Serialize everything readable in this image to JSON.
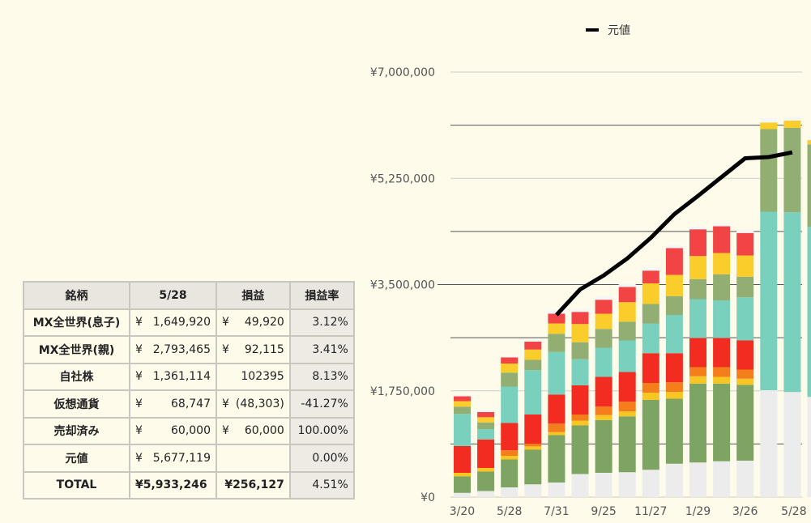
{
  "table": {
    "headers": [
      "銘柄",
      "5/28",
      "損益",
      "損益率"
    ],
    "rows": [
      {
        "name": "MX全世界(息子)",
        "yen": "¥",
        "amount": "1,649,920",
        "pl_yen": "¥",
        "pl": "49,920",
        "rate": "3.12%"
      },
      {
        "name": "MX全世界(親)",
        "yen": "¥",
        "amount": "2,793,465",
        "pl_yen": "¥",
        "pl": "92,115",
        "rate": "3.41%"
      },
      {
        "name": "自社株",
        "yen": "¥",
        "amount": "1,361,114",
        "pl_yen": "",
        "pl": "102395",
        "rate": "8.13%"
      },
      {
        "name": "仮想通貨",
        "yen": "¥",
        "amount": "68,747",
        "pl_yen": "¥",
        "pl": "(48,303)",
        "rate": "-41.27%"
      },
      {
        "name": "売却済み",
        "yen": "¥",
        "amount": "60,000",
        "pl_yen": "¥",
        "pl": "60,000",
        "rate": "100.00%"
      },
      {
        "name": "元値",
        "yen": "¥",
        "amount": "5,677,119",
        "pl_yen": "",
        "pl": "",
        "rate": "0.00%"
      }
    ],
    "total": {
      "name": "TOTAL",
      "amount": "¥5,933,246",
      "pl": "¥256,127",
      "rate": "4.51%"
    }
  },
  "chart_data": {
    "type": "bar",
    "stacked": true,
    "legend": [
      {
        "name": "元値",
        "color": "#000000"
      }
    ],
    "legend_position": "top",
    "ylim": [
      0,
      7000000
    ],
    "y_ticks": [
      "¥0",
      "¥1,750,000",
      "¥3,500,000",
      "¥5,250,000",
      "¥7,000,000"
    ],
    "y_tick_values": [
      0,
      1750000,
      3500000,
      5250000,
      7000000
    ],
    "x_tick_labels": [
      {
        "bar": 0,
        "label": "3/20"
      },
      {
        "bar": 2,
        "label": "5/28"
      },
      {
        "bar": 4,
        "label": "7/31"
      },
      {
        "bar": 6,
        "label": "9/25"
      },
      {
        "bar": 8,
        "label": "11/27"
      },
      {
        "bar": 10,
        "label": "1/29"
      },
      {
        "bar": 12,
        "label": "3/26"
      },
      {
        "bar": 14,
        "label": "5/28"
      }
    ],
    "series_colors": [
      "#ececec",
      "#7da462",
      "#f8c623",
      "#f47e1b",
      "#f32c22",
      "#78d0bd",
      "#92ae72",
      "#fbcd2b",
      "#f24444",
      "#f6f6f6"
    ],
    "bars": [
      [
        70000,
        270000,
        60000,
        0,
        440000,
        530000,
        120000,
        90000,
        80000,
        20000
      ],
      [
        100000,
        320000,
        60000,
        0,
        470000,
        170000,
        110000,
        85000,
        85000,
        30000
      ],
      [
        160000,
        460000,
        60000,
        90000,
        450000,
        600000,
        230000,
        150000,
        100000,
        25000
      ],
      [
        210000,
        570000,
        55000,
        45000,
        480000,
        730000,
        170000,
        170000,
        130000,
        30000
      ],
      [
        240000,
        780000,
        50000,
        140000,
        480000,
        700000,
        300000,
        170000,
        160000,
        60000
      ],
      [
        380000,
        800000,
        80000,
        100000,
        480000,
        430000,
        280000,
        300000,
        200000,
        50000
      ],
      [
        400000,
        870000,
        80000,
        140000,
        490000,
        480000,
        310000,
        250000,
        230000,
        60000
      ],
      [
        410000,
        920000,
        80000,
        160000,
        490000,
        520000,
        310000,
        320000,
        250000,
        50000
      ],
      [
        450000,
        1150000,
        120000,
        160000,
        490000,
        490000,
        320000,
        340000,
        210000,
        50000
      ],
      [
        550000,
        1070000,
        110000,
        160000,
        480000,
        630000,
        310000,
        350000,
        440000,
        50000
      ],
      [
        570000,
        1300000,
        120000,
        150000,
        480000,
        640000,
        330000,
        380000,
        440000,
        50000
      ],
      [
        590000,
        1280000,
        110000,
        160000,
        480000,
        620000,
        430000,
        350000,
        440000,
        50000
      ],
      [
        600000,
        1250000,
        100000,
        150000,
        480000,
        710000,
        340000,
        350000,
        370000,
        50000
      ],
      [
        1760000,
        0,
        0,
        0,
        0,
        2940000,
        1360000,
        110000,
        0,
        70000
      ],
      [
        1730000,
        0,
        0,
        0,
        0,
        2960000,
        1390000,
        120000,
        0,
        60000
      ],
      [
        1650000,
        0,
        0,
        0,
        0,
        2800000,
        1360000,
        70000,
        0,
        60000
      ]
    ],
    "line": {
      "name": "元値",
      "color": "#000000",
      "start_bar": 4,
      "values": [
        3000000,
        3420000,
        3650000,
        3930000,
        4270000,
        4660000,
        4960000,
        5270000,
        5580000,
        5600000,
        5677119
      ]
    }
  }
}
